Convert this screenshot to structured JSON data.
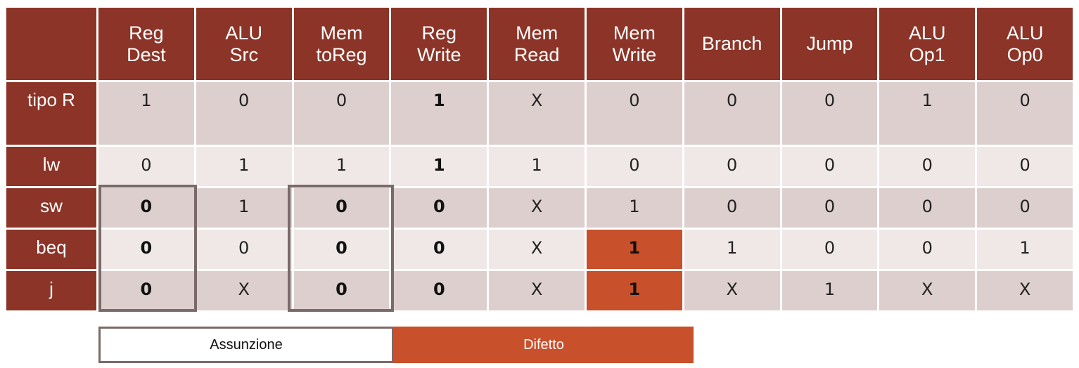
{
  "table": {
    "corner": "",
    "columns": [
      [
        "Reg",
        "Dest"
      ],
      [
        "ALU",
        "Src"
      ],
      [
        "Mem",
        "toReg"
      ],
      [
        "Reg",
        "Write"
      ],
      [
        "Mem",
        "Read"
      ],
      [
        "Mem",
        "Write"
      ],
      [
        "Branch"
      ],
      [
        "Jump"
      ],
      [
        "ALU",
        "Op1"
      ],
      [
        "ALU",
        "Op0"
      ]
    ],
    "rows": [
      {
        "label": "tipo R",
        "values": [
          "1",
          "0",
          "0",
          "1",
          "X",
          "0",
          "0",
          "0",
          "1",
          "0"
        ]
      },
      {
        "label": "lw",
        "values": [
          "0",
          "1",
          "1",
          "1",
          "1",
          "0",
          "0",
          "0",
          "0",
          "0"
        ]
      },
      {
        "label": "sw",
        "values": [
          "0",
          "1",
          "0",
          "0",
          "X",
          "1",
          "0",
          "0",
          "0",
          "0"
        ]
      },
      {
        "label": "beq",
        "values": [
          "0",
          "0",
          "0",
          "0",
          "X",
          "1",
          "1",
          "0",
          "0",
          "1"
        ]
      },
      {
        "label": "j",
        "values": [
          "0",
          "X",
          "0",
          "0",
          "X",
          "1",
          "X",
          "1",
          "X",
          "X"
        ]
      }
    ]
  },
  "legend": {
    "assunzione": "Assunzione",
    "difetto": "Difetto"
  },
  "colors": {
    "header": "#8b3427",
    "row_dark": "#dccfcd",
    "row_light": "#efe8e6",
    "difetto": "#c8502b",
    "assunzione_border": "#7a6a69"
  }
}
